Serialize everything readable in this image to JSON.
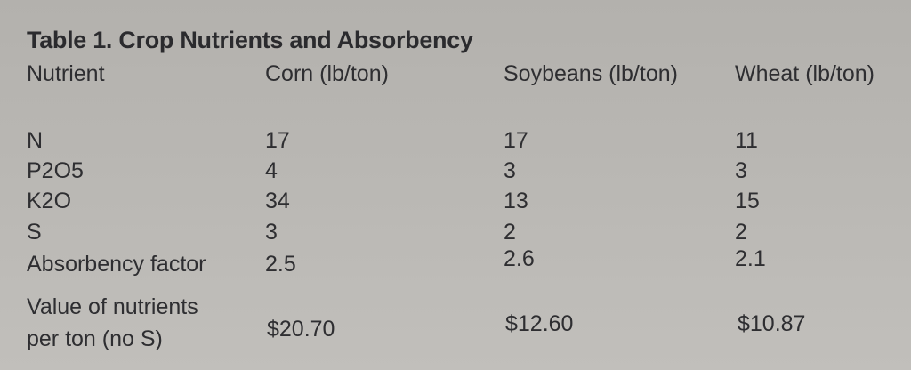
{
  "title": "Table 1. Crop Nutrients and Absorbency",
  "columns": [
    "Nutrient",
    "Corn (lb/ton)",
    "Soybeans (lb/ton)",
    "Wheat (lb/ton)"
  ],
  "rows": [
    {
      "label": "N",
      "corn": "17",
      "soybeans": "17",
      "wheat": "11"
    },
    {
      "label": "P2O5",
      "corn": "4",
      "soybeans": "3",
      "wheat": "3"
    },
    {
      "label": "K2O",
      "corn": "34",
      "soybeans": "13",
      "wheat": "15"
    },
    {
      "label": "S",
      "corn": "3",
      "soybeans": "2",
      "wheat": "2"
    },
    {
      "label": "Absorbency factor",
      "corn": "2.5",
      "soybeans": "2.6",
      "wheat": "2.1"
    }
  ],
  "value_row": {
    "label_line1": "Value of nutrients",
    "label_line2": "per ton (no S)",
    "corn": "$20.70",
    "soybeans": "$12.60",
    "wheat": "$10.87"
  }
}
